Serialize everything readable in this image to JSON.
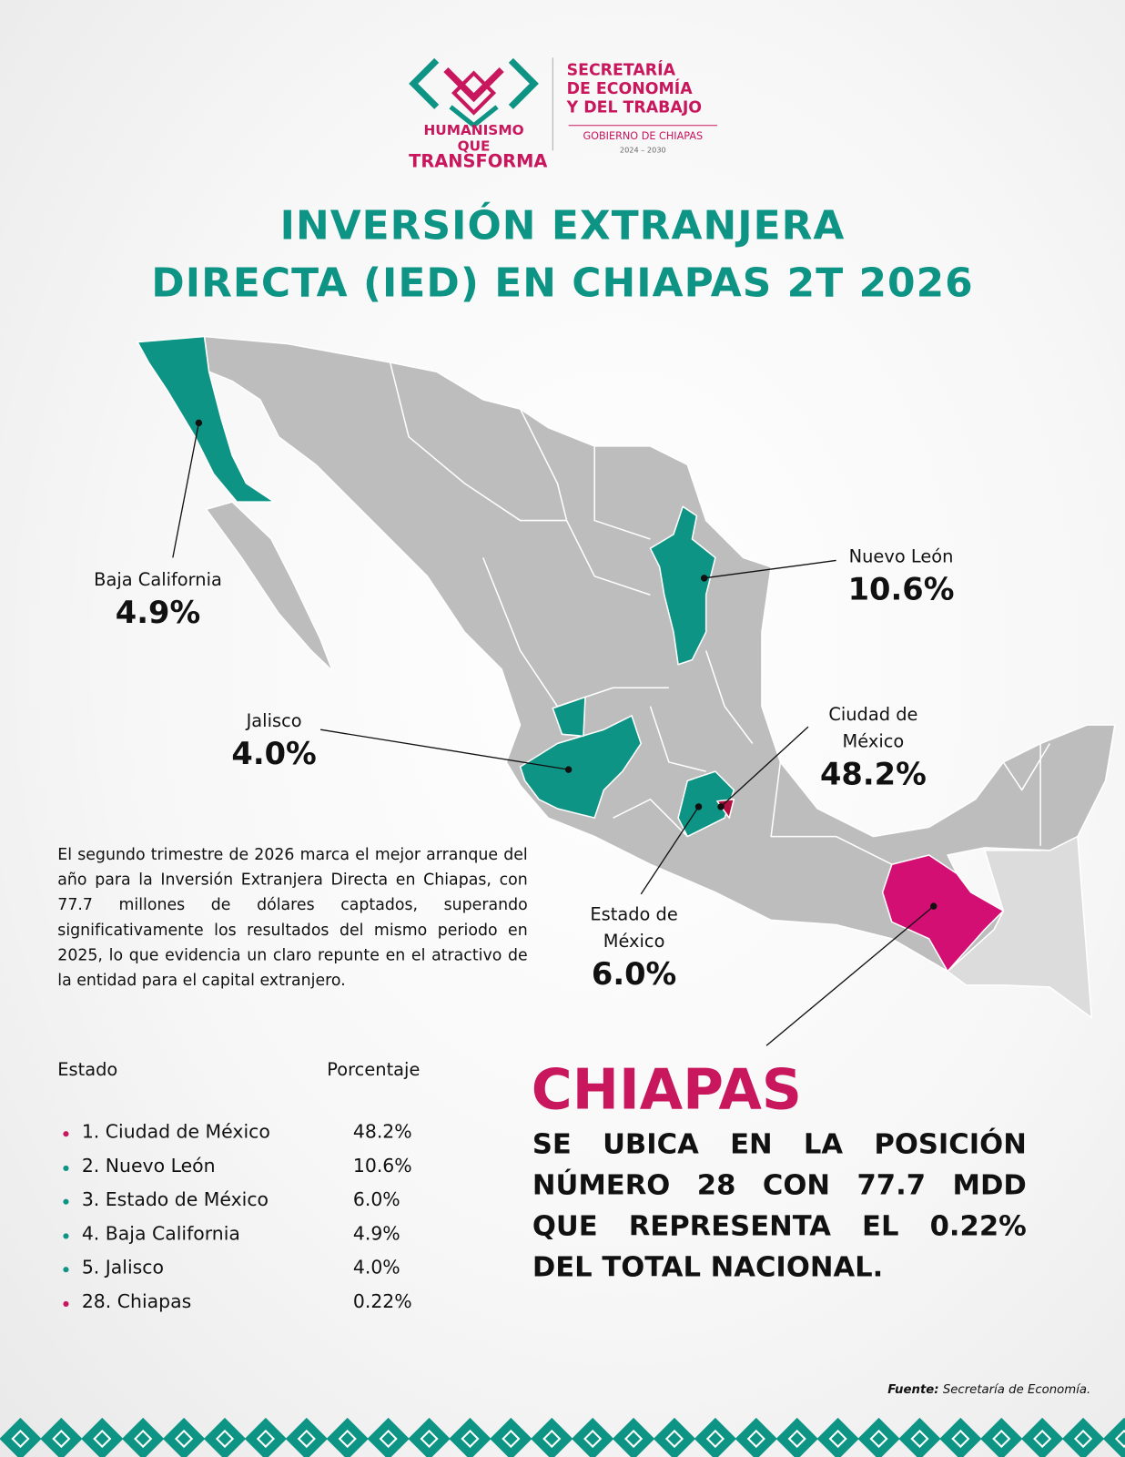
{
  "header": {
    "logo_line1": "HUMANISMO QUE",
    "logo_line2": "TRANSFORMA",
    "org_line1": "SECRETARÍA",
    "org_line2": "DE ECONOMÍA",
    "org_line3": "Y DEL TRABAJO",
    "gov": "GOBIERNO DE CHIAPAS",
    "period": "2024 – 2030"
  },
  "title": {
    "line1": "INVERSIÓN EXTRANJERA",
    "line2": "DIRECTA (IED) EN CHIAPAS 2T 2026"
  },
  "map": {
    "labels": [
      {
        "name": "Baja California",
        "value": "4.9%"
      },
      {
        "name": "Nuevo León",
        "value": "10.6%"
      },
      {
        "name": "Jalisco",
        "value": "4.0%"
      },
      {
        "name": "Ciudad de México",
        "value": "48.2%"
      },
      {
        "name": "Estado de México",
        "value": "6.0%"
      }
    ]
  },
  "paragraph": "El segundo trimestre de 2026 marca el mejor arranque del año para la Inversión Extranjera Directa en Chiapas, con 77.7 millones de dólares captados, superando significativamente los resultados del mismo periodo en 2025, lo que evidencia un claro repunte en el atractivo de la entidad para el capital extranjero.",
  "table": {
    "headers": [
      "Estado",
      "Porcentaje"
    ],
    "rows": [
      {
        "estado": "1. Ciudad de México",
        "porcentaje": "48.2%",
        "color": "#c8175d"
      },
      {
        "estado": "2. Nuevo León",
        "porcentaje": "10.6%",
        "color": "#0e9484"
      },
      {
        "estado": "3. Estado de México",
        "porcentaje": "6.0%",
        "color": "#0e9484"
      },
      {
        "estado": "4. Baja California",
        "porcentaje": "4.9%",
        "color": "#0e9484"
      },
      {
        "estado": "5. Jalisco",
        "porcentaje": "4.0%",
        "color": "#0e9484"
      },
      {
        "estado": "28. Chiapas",
        "porcentaje": "0.22%",
        "color": "#c8175d"
      }
    ]
  },
  "highlight": {
    "title": "CHIAPAS",
    "lines": [
      "SE UBICA EN LA POSICIÓN",
      "NÚMERO 28 CON 77.7 MDD",
      "QUE REPRESENTA EL 0.22%",
      "DEL TOTAL NACIONAL."
    ]
  },
  "source": {
    "label": "Fuente:",
    "text": "Secretaría de Economía."
  }
}
